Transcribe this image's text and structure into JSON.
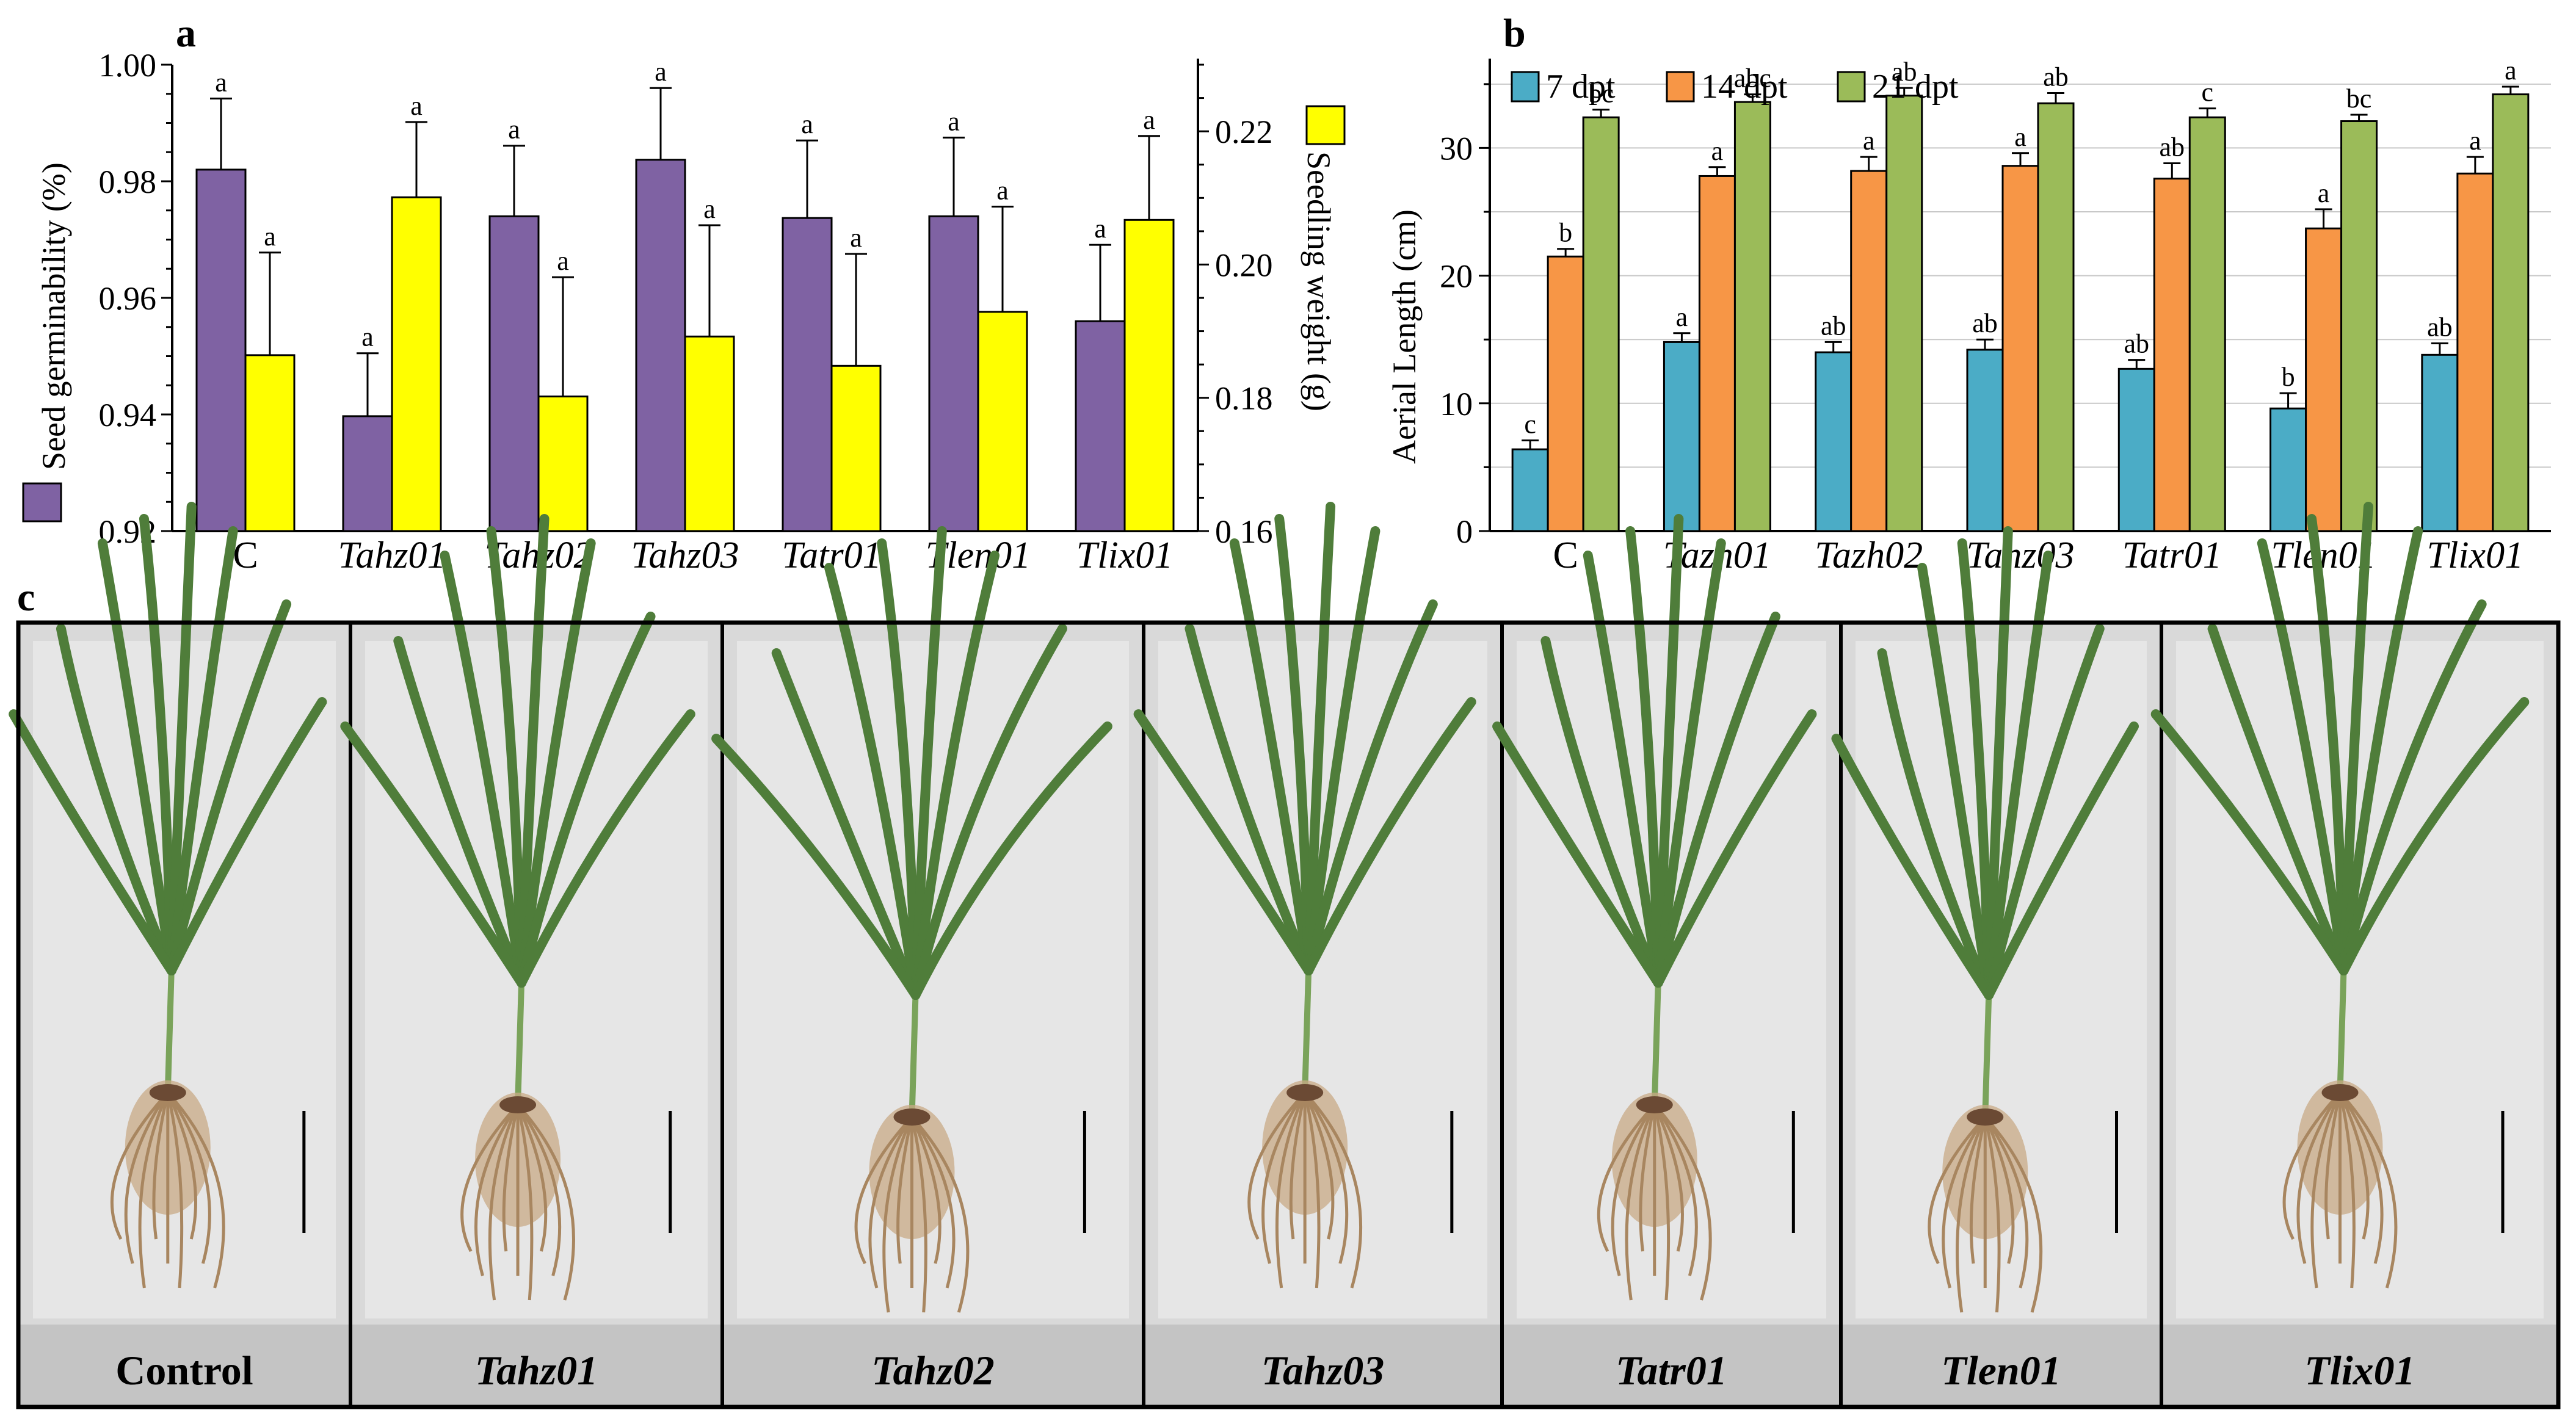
{
  "chart_data": [
    {
      "panel": "a",
      "type": "bar",
      "categories": [
        "C",
        "Tahz01",
        "Tahz02",
        "Tahz03",
        "Tatr01",
        "Tlen01",
        "Tlix01"
      ],
      "italic_categories": [
        false,
        true,
        true,
        true,
        true,
        true,
        true
      ],
      "ylabel_left": "Seed germinability (%)",
      "ylabel_right": "Seedling weight (g)",
      "ylim_left": [
        0.92,
        1.0
      ],
      "yticks_left": [
        "0.92",
        "0.94",
        "0.96",
        "0.98",
        "1.00"
      ],
      "ylim_right": [
        0.16,
        0.23
      ],
      "yticks_right": [
        "0.16",
        "0.18",
        "0.20",
        "0.22"
      ],
      "series": [
        {
          "name": "Seed germinability (%)",
          "axis": "left",
          "color": "#7f62a3",
          "values": [
            0.982,
            0.9397,
            0.974,
            0.9837,
            0.9737,
            0.974,
            0.956
          ],
          "errors": [
            0.0122,
            0.0108,
            0.0121,
            0.0123,
            0.0133,
            0.0135,
            0.0131
          ],
          "letters": [
            "a",
            "a",
            "a",
            "a",
            "a",
            "a",
            "a"
          ]
        },
        {
          "name": "Seedling weight (g)",
          "axis": "right",
          "color": "#ffff00",
          "values": [
            0.1864,
            0.2101,
            0.1802,
            0.1892,
            0.1848,
            0.1929,
            0.2067
          ],
          "errors": [
            0.0154,
            0.0113,
            0.0179,
            0.0167,
            0.0168,
            0.0158,
            0.0126
          ],
          "letters": [
            "a",
            "a",
            "a",
            "a",
            "a",
            "a",
            "a"
          ]
        }
      ]
    },
    {
      "panel": "b",
      "type": "bar",
      "categories": [
        "C",
        "Tazh01",
        "Tazh02",
        "Tahz03",
        "Tatr01",
        "Tlen01",
        "Tlix01"
      ],
      "italic_categories": [
        false,
        true,
        true,
        true,
        true,
        true,
        true
      ],
      "ylabel": "Aerial Length (cm)",
      "ylim": [
        0,
        37
      ],
      "yticks": [
        "0",
        "10",
        "20",
        "30"
      ],
      "grid": true,
      "legend": "top-left",
      "series": [
        {
          "name": "7 dpt",
          "color": "#4bacc6",
          "values": [
            6.4,
            14.8,
            14.0,
            14.2,
            12.7,
            9.6,
            13.8
          ],
          "errors": [
            0.7,
            0.7,
            0.8,
            0.8,
            0.7,
            1.2,
            0.9
          ],
          "letters": [
            "c",
            "a",
            "ab",
            "ab",
            "ab",
            "b",
            "ab"
          ]
        },
        {
          "name": "14 dpt",
          "color": "#f79646",
          "values": [
            21.5,
            27.8,
            28.2,
            28.6,
            27.6,
            23.7,
            28.0
          ],
          "errors": [
            0.6,
            0.7,
            1.1,
            1.0,
            1.2,
            1.5,
            1.3
          ],
          "letters": [
            "b",
            "a",
            "a",
            "a",
            "ab",
            "a",
            "a"
          ]
        },
        {
          "name": "21 dpt",
          "color": "#9bbb59",
          "values": [
            32.4,
            33.6,
            34.1,
            33.5,
            32.4,
            32.1,
            34.2
          ],
          "errors": [
            0.6,
            0.6,
            0.6,
            0.8,
            0.7,
            0.5,
            0.6
          ],
          "letters": [
            "bc",
            "abc",
            "ab",
            "ab",
            "c",
            "bc",
            "a"
          ]
        }
      ]
    }
  ],
  "panel_letters": {
    "a": "a",
    "b": "b",
    "c": "c"
  },
  "photo_panel": {
    "labels": [
      "Control",
      "Tahz01",
      "Tahz02",
      "Tahz03",
      "Tatr01",
      "Tlen01",
      "Tlix01"
    ],
    "italic_labels": [
      false,
      true,
      true,
      true,
      true,
      true,
      true
    ],
    "leaf_color": "#4f7d3a",
    "root_color": "#c8a986"
  }
}
